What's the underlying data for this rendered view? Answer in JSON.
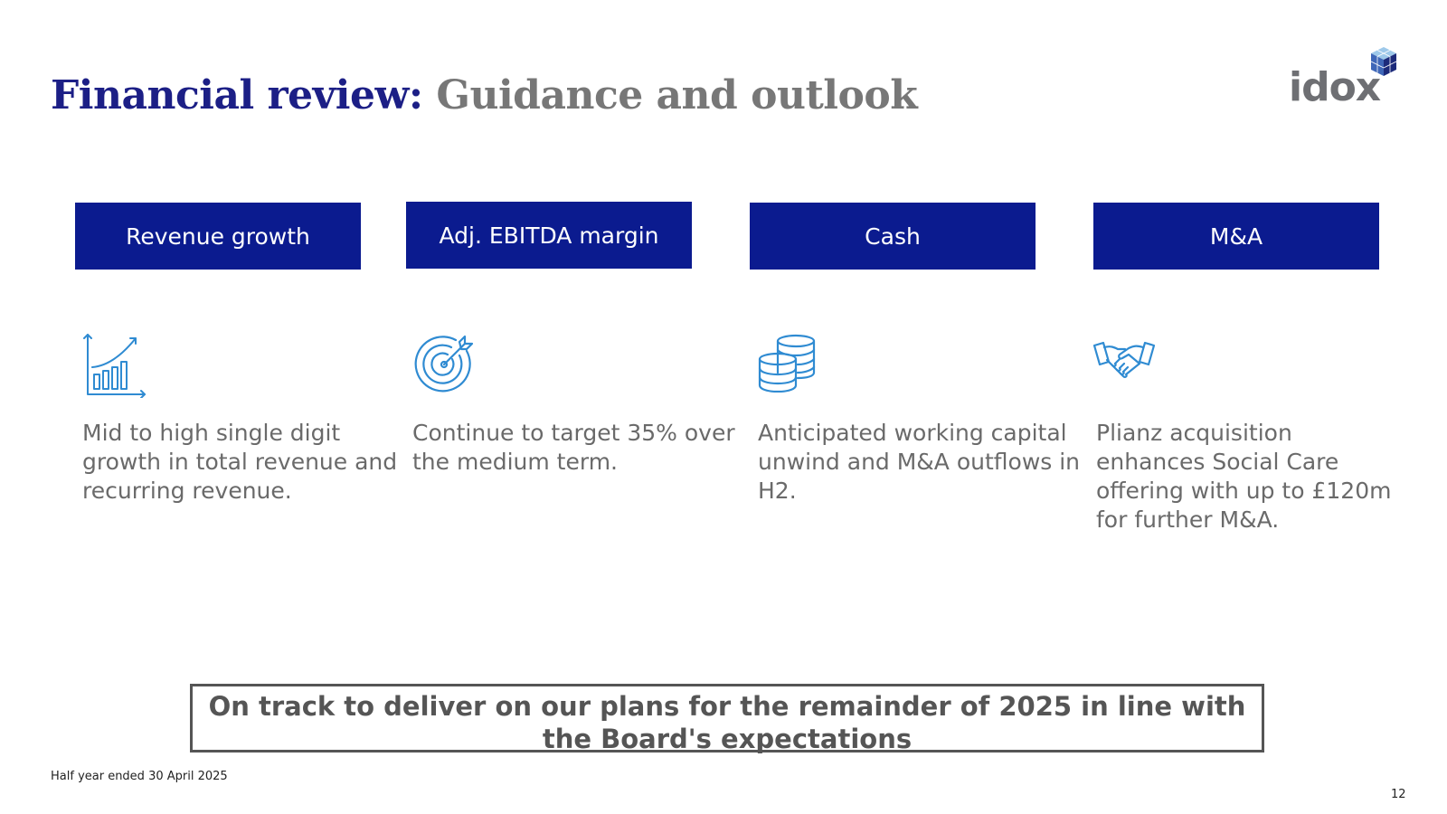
{
  "title": {
    "part1": "Financial review:",
    "part2": "Guidance and outlook"
  },
  "logo": {
    "text": "idox"
  },
  "columns": [
    {
      "header": "Revenue growth",
      "icon": "growth-chart-icon",
      "text": "Mid to high single digit growth in total revenue and recurring revenue."
    },
    {
      "header": "Adj. EBITDA margin",
      "icon": "target-icon",
      "text": "Continue to target 35% over the medium term."
    },
    {
      "header": "Cash",
      "icon": "coins-icon",
      "text": "Anticipated working capital unwind and M&A outflows in H2."
    },
    {
      "header": "M&A",
      "icon": "handshake-icon",
      "text": "Plianz acquisition enhances Social Care offering with up to £120m for further M&A."
    }
  ],
  "callout": "On track to deliver on our plans for the remainder of 2025 in line with the Board's expectations",
  "footer": "Half year ended 30 April 2025",
  "page_number": "12",
  "colors": {
    "header_bg": "#0b1b8f",
    "title_blue": "#1c1f86",
    "title_grey": "#777777",
    "icon_blue": "#2f8bd2",
    "body_grey": "#6a6a6a"
  }
}
